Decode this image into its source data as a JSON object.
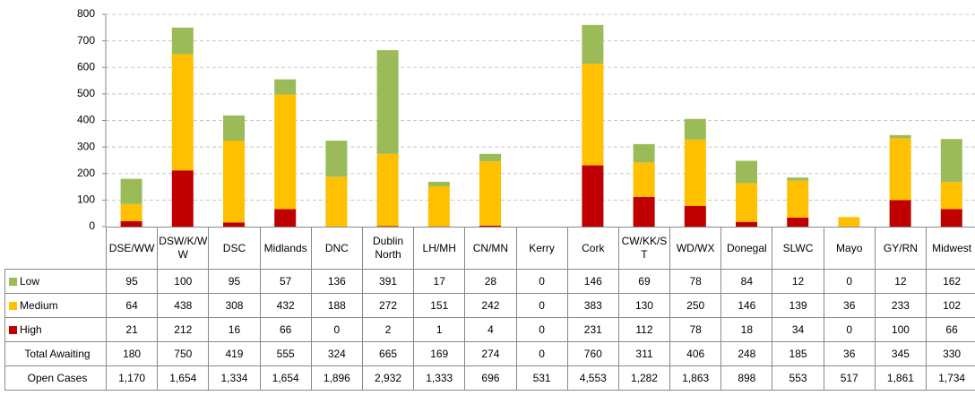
{
  "chart_data": {
    "type": "bar",
    "stacked": true,
    "categories": [
      "DSE/WW",
      "DSW/K/WW",
      "DSC",
      "Midlands",
      "DNC",
      "Dublin North",
      "LH/MH",
      "CN/MN",
      "Kerry",
      "Cork",
      "CW/KK/ST",
      "WD/WX",
      "Donegal",
      "SLWC",
      "Mayo",
      "GY/RN",
      "Midwest"
    ],
    "series": [
      {
        "name": "Low",
        "color": "#9bbb59",
        "values": [
          95,
          100,
          95,
          57,
          136,
          391,
          17,
          28,
          0,
          146,
          69,
          78,
          84,
          12,
          0,
          12,
          162
        ]
      },
      {
        "name": "Medium",
        "color": "#ffc000",
        "values": [
          64,
          438,
          308,
          432,
          188,
          272,
          151,
          242,
          0,
          383,
          130,
          250,
          146,
          139,
          36,
          233,
          102
        ]
      },
      {
        "name": "High",
        "color": "#c00000",
        "values": [
          21,
          212,
          16,
          66,
          0,
          2,
          1,
          4,
          0,
          231,
          112,
          78,
          18,
          34,
          0,
          100,
          66
        ]
      }
    ],
    "table_rows": [
      {
        "name": "Total Awaiting",
        "values": [
          180,
          750,
          419,
          555,
          324,
          665,
          169,
          274,
          0,
          760,
          311,
          406,
          248,
          185,
          36,
          345,
          330
        ]
      },
      {
        "name": "Open Cases",
        "values": [
          1170,
          1654,
          1334,
          1654,
          1896,
          2932,
          1333,
          696,
          531,
          4553,
          1282,
          1863,
          898,
          553,
          517,
          1861,
          1734
        ],
        "value_labels": [
          "1,170",
          "1,654",
          "1,334",
          "1,654",
          "1,896",
          "2,932",
          "1,333",
          "696",
          "531",
          "4,553",
          "1,282",
          "1,863",
          "898",
          "553",
          "517",
          "1,861",
          "1,734"
        ]
      }
    ],
    "ylim": [
      0,
      800
    ],
    "yticks": [
      0,
      100,
      200,
      300,
      400,
      500,
      600,
      700,
      800
    ],
    "grid": true
  }
}
